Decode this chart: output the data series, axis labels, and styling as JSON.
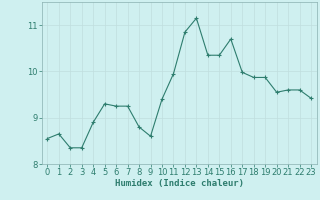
{
  "x": [
    0,
    1,
    2,
    3,
    4,
    5,
    6,
    7,
    8,
    9,
    10,
    11,
    12,
    13,
    14,
    15,
    16,
    17,
    18,
    19,
    20,
    21,
    22,
    23
  ],
  "y": [
    8.55,
    8.65,
    8.35,
    8.35,
    8.9,
    9.3,
    9.25,
    9.25,
    8.8,
    8.6,
    9.4,
    9.95,
    10.85,
    11.15,
    10.35,
    10.35,
    10.7,
    9.98,
    9.87,
    9.87,
    9.55,
    9.6,
    9.6,
    9.42
  ],
  "line_color": "#2e7d6e",
  "marker": "+",
  "marker_size": 3,
  "bg_color": "#cff0f0",
  "grid_color": "#c0dede",
  "xlabel": "Humidex (Indice chaleur)",
  "ylim": [
    8,
    11.5
  ],
  "xlim": [
    -0.5,
    23.5
  ],
  "yticks": [
    8,
    9,
    10,
    11
  ],
  "xticks": [
    0,
    1,
    2,
    3,
    4,
    5,
    6,
    7,
    8,
    9,
    10,
    11,
    12,
    13,
    14,
    15,
    16,
    17,
    18,
    19,
    20,
    21,
    22,
    23
  ],
  "tick_color": "#2e7d6e",
  "label_color": "#2e7d6e",
  "axis_color": "#2e7d6e",
  "font_size_xlabel": 6.5,
  "font_size_tick": 6.0,
  "spine_color": "#8ab0b0"
}
